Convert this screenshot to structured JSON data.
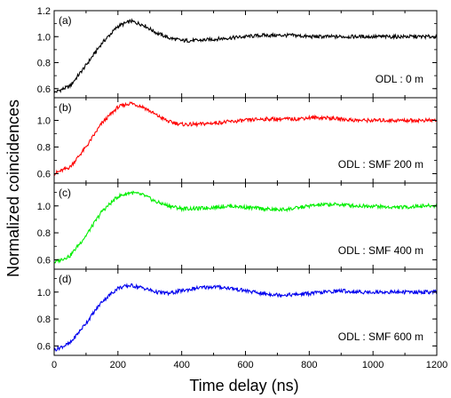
{
  "chart_data": {
    "type": "line",
    "xlabel": "Time delay (ns)",
    "ylabel": "Normalized coincidences",
    "xlim": [
      0,
      1200
    ],
    "xticks": [
      "0",
      "200",
      "400",
      "600",
      "800",
      "1000",
      "1200"
    ],
    "panels": [
      {
        "panel_label": "(a)",
        "annotation": "ODL : 0 m",
        "color": "#000000",
        "ylim": [
          0.53,
          1.2
        ],
        "yticks": [
          "0.6",
          "0.8",
          "1.0",
          "1.2"
        ],
        "ytick_values": [
          0.6,
          0.8,
          1.0,
          1.2
        ],
        "points": {
          "x": [
            0,
            50,
            100,
            150,
            200,
            240,
            280,
            320,
            360,
            400,
            450,
            500,
            550,
            600,
            650,
            700,
            750,
            800,
            850,
            900,
            950,
            1000,
            1050,
            1100,
            1150,
            1200
          ],
          "y": [
            0.57,
            0.62,
            0.78,
            0.95,
            1.08,
            1.12,
            1.09,
            1.03,
            0.99,
            0.97,
            0.97,
            0.98,
            0.99,
            1.0,
            1.01,
            1.01,
            1.01,
            1.0,
            1.0,
            1.0,
            1.0,
            1.0,
            1.0,
            1.0,
            1.0,
            1.0
          ]
        }
      },
      {
        "panel_label": "(b)",
        "annotation": "ODL : SMF 200 m",
        "color": "#ff0000",
        "ylim": [
          0.53,
          1.17
        ],
        "yticks": [
          "0.6",
          "0.8",
          "1.0"
        ],
        "ytick_values": [
          0.6,
          0.8,
          1.0
        ],
        "points": {
          "x": [
            0,
            50,
            100,
            150,
            200,
            240,
            280,
            320,
            360,
            400,
            450,
            500,
            550,
            600,
            650,
            700,
            750,
            800,
            850,
            900,
            950,
            1000,
            1050,
            1100,
            1150,
            1200
          ],
          "y": [
            0.6,
            0.65,
            0.8,
            0.98,
            1.1,
            1.13,
            1.1,
            1.04,
            0.99,
            0.97,
            0.97,
            0.98,
            0.99,
            1.0,
            1.01,
            1.01,
            1.01,
            1.02,
            1.02,
            1.01,
            1.0,
            1.0,
            1.0,
            1.0,
            1.0,
            1.0
          ]
        }
      },
      {
        "panel_label": "(c)",
        "annotation": "ODL : SMF 400 m",
        "color": "#00ee00",
        "ylim": [
          0.53,
          1.17
        ],
        "yticks": [
          "0.6",
          "0.8",
          "1.0"
        ],
        "ytick_values": [
          0.6,
          0.8,
          1.0
        ],
        "points": {
          "x": [
            0,
            50,
            100,
            150,
            200,
            240,
            280,
            320,
            360,
            400,
            450,
            500,
            550,
            600,
            650,
            700,
            750,
            800,
            850,
            900,
            950,
            1000,
            1050,
            1100,
            1150,
            1200
          ],
          "y": [
            0.58,
            0.63,
            0.78,
            0.96,
            1.07,
            1.1,
            1.08,
            1.03,
            1.0,
            0.98,
            0.98,
            0.99,
            1.0,
            0.99,
            0.98,
            0.97,
            0.98,
            1.0,
            1.01,
            1.01,
            1.0,
            1.0,
            0.99,
            0.99,
            1.0,
            1.0
          ]
        }
      },
      {
        "panel_label": "(d)",
        "annotation": "ODL : SMF 600 m",
        "color": "#0000ee",
        "ylim": [
          0.53,
          1.17
        ],
        "yticks": [
          "0.6",
          "0.8",
          "1.0"
        ],
        "ytick_values": [
          0.6,
          0.8,
          1.0
        ],
        "points": {
          "x": [
            0,
            50,
            100,
            150,
            200,
            240,
            280,
            320,
            360,
            400,
            450,
            500,
            550,
            600,
            650,
            700,
            750,
            800,
            850,
            900,
            950,
            1000,
            1050,
            1100,
            1150,
            1200
          ],
          "y": [
            0.57,
            0.62,
            0.77,
            0.93,
            1.03,
            1.05,
            1.03,
            1.0,
            0.99,
            1.01,
            1.03,
            1.04,
            1.03,
            1.01,
            0.99,
            0.98,
            0.98,
            0.99,
            1.0,
            1.01,
            1.0,
            1.0,
            1.0,
            1.0,
            1.0,
            1.0
          ]
        }
      }
    ]
  }
}
